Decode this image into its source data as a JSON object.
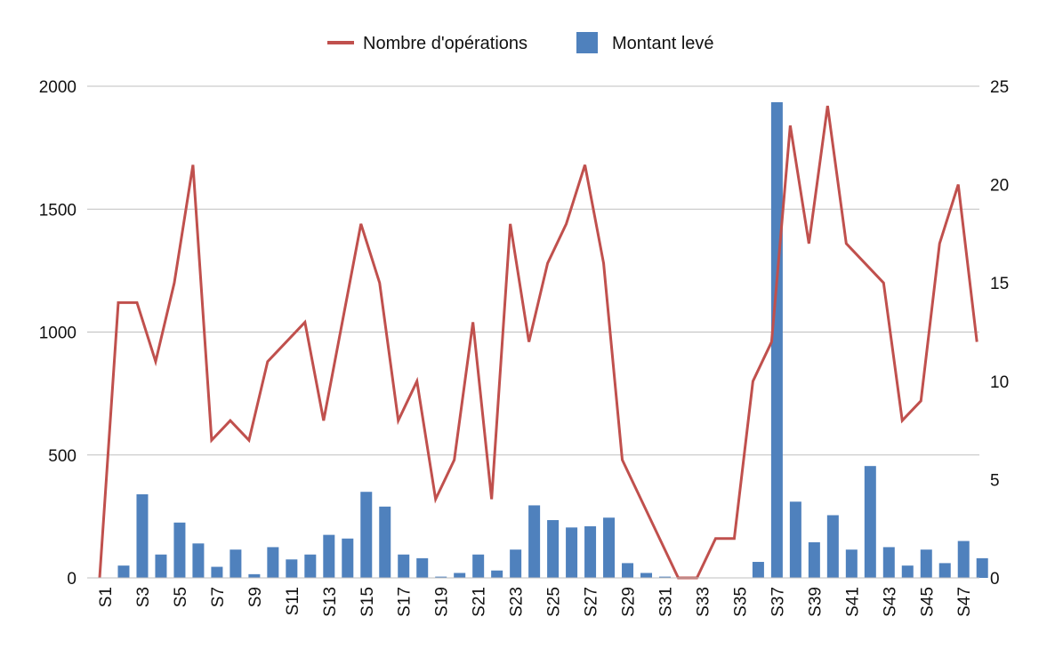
{
  "chart_data": {
    "type": "bar+line",
    "categories": [
      "S1",
      "S2",
      "S3",
      "S4",
      "S5",
      "S6",
      "S7",
      "S8",
      "S9",
      "S10",
      "S11",
      "S12",
      "S13",
      "S14",
      "S15",
      "S16",
      "S17",
      "S18",
      "S19",
      "S20",
      "S21",
      "S22",
      "S23",
      "S24",
      "S25",
      "S26",
      "S27",
      "S28",
      "S29",
      "S30",
      "S31",
      "S32",
      "S33",
      "S34",
      "S35",
      "S36",
      "S37",
      "S38",
      "S39",
      "S40",
      "S41",
      "S42",
      "S43",
      "S44",
      "S45",
      "S46",
      "S47",
      "S48"
    ],
    "x_tick_labels": [
      "S1",
      "S3",
      "S5",
      "S7",
      "S9",
      "S11",
      "S13",
      "S15",
      "S17",
      "S19",
      "S21",
      "S23",
      "S25",
      "S27",
      "S29",
      "S31",
      "S33",
      "S35",
      "S37",
      "S39",
      "S41",
      "S43",
      "S45",
      "S47"
    ],
    "series": [
      {
        "name": "Montant levé",
        "kind": "bar",
        "axis": "left",
        "color": "#4F81BD",
        "values": [
          0,
          50,
          340,
          95,
          225,
          140,
          45,
          115,
          15,
          125,
          75,
          95,
          175,
          160,
          350,
          290,
          95,
          80,
          5,
          20,
          95,
          30,
          115,
          295,
          235,
          205,
          210,
          245,
          60,
          20,
          5,
          0,
          0,
          0,
          0,
          65,
          1935,
          310,
          145,
          255,
          115,
          455,
          125,
          50,
          115,
          60,
          150,
          80
        ]
      },
      {
        "name": "Nombre d'opérations",
        "kind": "line",
        "axis": "right",
        "color": "#C0504D",
        "values": [
          0,
          14,
          14,
          11,
          15,
          21,
          7,
          8,
          7,
          11,
          12,
          13,
          8,
          13,
          18,
          15,
          8,
          10,
          4,
          6,
          13,
          4,
          18,
          12,
          16,
          18,
          21,
          16,
          6,
          4,
          2,
          0,
          0,
          2,
          2,
          10,
          12,
          23,
          17,
          24,
          17,
          16,
          15,
          8,
          9,
          17,
          20,
          12
        ]
      }
    ],
    "y_left": {
      "min": 0,
      "max": 2000,
      "ticks": [
        0,
        500,
        1000,
        1500,
        2000
      ]
    },
    "y_right": {
      "min": 0,
      "max": 25,
      "ticks": [
        0,
        5,
        10,
        15,
        20,
        25
      ]
    },
    "grid": true,
    "legend": {
      "position": "top-center",
      "entries": [
        "Nombre d'opérations",
        "Montant levé"
      ]
    },
    "title": "",
    "xlabel": "",
    "ylabel": ""
  }
}
